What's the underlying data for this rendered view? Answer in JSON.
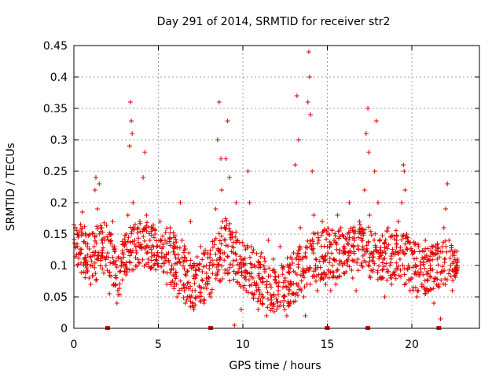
{
  "chart_data": {
    "type": "scatter",
    "title": "Day 291 of 2014, SRMTID for receiver str2",
    "xlabel": "GPS time / hours",
    "ylabel": "SRMTID / TECUs",
    "xlim": [
      0,
      24
    ],
    "ylim": [
      0,
      0.45
    ],
    "x_ticks": [
      0,
      5,
      10,
      15,
      20
    ],
    "x_tick_labels": [
      "0",
      "5",
      "10",
      "15",
      "20"
    ],
    "y_ticks": [
      0,
      0.05,
      0.1,
      0.15,
      0.2,
      0.25,
      0.3,
      0.35,
      0.4,
      0.45
    ],
    "y_tick_labels": [
      "0",
      "0.05",
      "0.1",
      "0.15",
      "0.2",
      "0.25",
      "0.3",
      "0.35",
      "0.4",
      "0.45"
    ],
    "grid": true,
    "marker": "+",
    "series_color": "#e00000",
    "series": [
      {
        "name": "SRMTID",
        "points": [
          [
            0.0,
            0.165
          ],
          [
            0.1,
            0.13
          ],
          [
            0.2,
            0.1
          ],
          [
            0.25,
            0.145
          ],
          [
            0.35,
            0.12
          ],
          [
            0.4,
            0.165
          ],
          [
            0.5,
            0.185
          ],
          [
            0.6,
            0.11
          ],
          [
            0.7,
            0.15
          ],
          [
            0.8,
            0.13
          ],
          [
            0.9,
            0.08
          ],
          [
            1.0,
            0.07
          ],
          [
            1.1,
            0.1
          ],
          [
            1.2,
            0.13
          ],
          [
            1.25,
            0.22
          ],
          [
            1.3,
            0.24
          ],
          [
            1.4,
            0.19
          ],
          [
            1.5,
            0.23
          ],
          [
            1.6,
            0.16
          ],
          [
            1.7,
            0.12
          ],
          [
            1.8,
            0.14
          ],
          [
            1.9,
            0.1
          ],
          [
            2.0,
            0.12
          ],
          [
            2.1,
            0.055
          ],
          [
            2.2,
            0.15
          ],
          [
            2.3,
            0.17
          ],
          [
            2.4,
            0.13
          ],
          [
            2.5,
            0.08
          ],
          [
            2.55,
            0.04
          ],
          [
            2.6,
            0.06
          ],
          [
            2.7,
            0.09
          ],
          [
            2.8,
            0.1
          ],
          [
            2.9,
            0.12
          ],
          [
            3.0,
            0.09
          ],
          [
            3.1,
            0.15
          ],
          [
            3.2,
            0.18
          ],
          [
            3.3,
            0.29
          ],
          [
            3.35,
            0.36
          ],
          [
            3.4,
            0.33
          ],
          [
            3.45,
            0.31
          ],
          [
            3.5,
            0.2
          ],
          [
            3.6,
            0.14
          ],
          [
            3.7,
            0.12
          ],
          [
            3.8,
            0.16
          ],
          [
            3.9,
            0.17
          ],
          [
            4.0,
            0.13
          ],
          [
            4.1,
            0.24
          ],
          [
            4.2,
            0.28
          ],
          [
            4.3,
            0.18
          ],
          [
            4.4,
            0.11
          ],
          [
            4.5,
            0.14
          ],
          [
            4.6,
            0.12
          ],
          [
            4.7,
            0.16
          ],
          [
            4.8,
            0.15
          ],
          [
            4.9,
            0.13
          ],
          [
            5.0,
            0.1
          ],
          [
            5.1,
            0.17
          ],
          [
            5.2,
            0.12
          ],
          [
            5.3,
            0.09
          ],
          [
            5.4,
            0.14
          ],
          [
            5.5,
            0.07
          ],
          [
            5.6,
            0.12
          ],
          [
            5.7,
            0.16
          ],
          [
            5.8,
            0.1
          ],
          [
            5.9,
            0.085
          ],
          [
            6.0,
            0.13
          ],
          [
            6.1,
            0.05
          ],
          [
            6.2,
            0.11
          ],
          [
            6.3,
            0.2
          ],
          [
            6.4,
            0.14
          ],
          [
            6.5,
            0.07
          ],
          [
            6.6,
            0.04
          ],
          [
            6.7,
            0.09
          ],
          [
            6.8,
            0.12
          ],
          [
            6.9,
            0.17
          ],
          [
            7.0,
            0.06
          ],
          [
            7.1,
            0.03
          ],
          [
            7.2,
            0.08
          ],
          [
            7.3,
            0.1
          ],
          [
            7.4,
            0.05
          ],
          [
            7.5,
            0.13
          ],
          [
            7.6,
            0.09
          ],
          [
            7.7,
            0.04
          ],
          [
            7.8,
            0.07
          ],
          [
            7.9,
            0.12
          ],
          [
            8.0,
            0.08
          ],
          [
            8.1,
            0.05
          ],
          [
            8.2,
            0.1
          ],
          [
            8.3,
            0.14
          ],
          [
            8.4,
            0.19
          ],
          [
            8.5,
            0.3
          ],
          [
            8.6,
            0.36
          ],
          [
            8.7,
            0.27
          ],
          [
            8.75,
            0.22
          ],
          [
            8.8,
            0.17
          ],
          [
            8.9,
            0.12
          ],
          [
            9.0,
            0.27
          ],
          [
            9.1,
            0.33
          ],
          [
            9.2,
            0.24
          ],
          [
            9.3,
            0.15
          ],
          [
            9.4,
            0.1
          ],
          [
            9.5,
            0.005
          ],
          [
            9.6,
            0.2
          ],
          [
            9.7,
            0.14
          ],
          [
            9.8,
            0.07
          ],
          [
            9.9,
            0.03
          ],
          [
            10.0,
            0.11
          ],
          [
            10.1,
            0.09
          ],
          [
            10.2,
            0.06
          ],
          [
            10.3,
            0.25
          ],
          [
            10.4,
            0.2
          ],
          [
            10.5,
            0.13
          ],
          [
            10.6,
            0.08
          ],
          [
            10.7,
            0.1
          ],
          [
            10.8,
            0.06
          ],
          [
            10.9,
            0.03
          ],
          [
            11.0,
            0.08
          ],
          [
            11.1,
            0.12
          ],
          [
            11.2,
            0.05
          ],
          [
            11.3,
            0.09
          ],
          [
            11.4,
            0.02
          ],
          [
            11.5,
            0.14
          ],
          [
            11.6,
            0.07
          ],
          [
            11.7,
            0.04
          ],
          [
            11.8,
            0.11
          ],
          [
            11.9,
            0.09
          ],
          [
            12.0,
            0.03
          ],
          [
            12.1,
            0.06
          ],
          [
            12.2,
            0.13
          ],
          [
            12.3,
            0.1
          ],
          [
            12.4,
            0.05
          ],
          [
            12.5,
            0.08
          ],
          [
            12.6,
            0.02
          ],
          [
            12.7,
            0.04
          ],
          [
            12.8,
            0.07
          ],
          [
            12.9,
            0.11
          ],
          [
            13.0,
            0.12
          ],
          [
            13.1,
            0.26
          ],
          [
            13.2,
            0.37
          ],
          [
            13.3,
            0.3
          ],
          [
            13.4,
            0.16
          ],
          [
            13.5,
            0.11
          ],
          [
            13.6,
            0.05
          ],
          [
            13.7,
            0.02
          ],
          [
            13.8,
            0.07
          ],
          [
            13.85,
            0.36
          ],
          [
            13.9,
            0.44
          ],
          [
            13.95,
            0.4
          ],
          [
            14.0,
            0.34
          ],
          [
            14.1,
            0.25
          ],
          [
            14.2,
            0.18
          ],
          [
            14.3,
            0.1
          ],
          [
            14.4,
            0.06
          ],
          [
            14.5,
            0.14
          ],
          [
            14.6,
            0.08
          ],
          [
            14.7,
            0.17
          ],
          [
            14.8,
            0.11
          ],
          [
            14.9,
            0.07
          ],
          [
            15.0,
            0.13
          ],
          [
            15.1,
            0.09
          ],
          [
            15.2,
            0.06
          ],
          [
            15.3,
            0.1
          ],
          [
            15.4,
            0.14
          ],
          [
            15.5,
            0.07
          ],
          [
            15.6,
            0.18
          ],
          [
            15.7,
            0.12
          ],
          [
            15.8,
            0.16
          ],
          [
            15.9,
            0.1
          ],
          [
            16.0,
            0.13
          ],
          [
            16.1,
            0.09
          ],
          [
            16.2,
            0.15
          ],
          [
            16.3,
            0.2
          ],
          [
            16.4,
            0.12
          ],
          [
            16.5,
            0.08
          ],
          [
            16.6,
            0.14
          ],
          [
            16.7,
            0.06
          ],
          [
            16.8,
            0.11
          ],
          [
            16.9,
            0.17
          ],
          [
            17.0,
            0.1
          ],
          [
            17.1,
            0.13
          ],
          [
            17.2,
            0.22
          ],
          [
            17.3,
            0.31
          ],
          [
            17.4,
            0.35
          ],
          [
            17.45,
            0.28
          ],
          [
            17.5,
            0.18
          ],
          [
            17.6,
            0.12
          ],
          [
            17.7,
            0.09
          ],
          [
            17.8,
            0.25
          ],
          [
            17.9,
            0.33
          ],
          [
            18.0,
            0.2
          ],
          [
            18.1,
            0.14
          ],
          [
            18.2,
            0.08
          ],
          [
            18.3,
            0.11
          ],
          [
            18.4,
            0.05
          ],
          [
            18.5,
            0.13
          ],
          [
            18.6,
            0.16
          ],
          [
            18.7,
            0.1
          ],
          [
            18.8,
            0.07
          ],
          [
            18.9,
            0.12
          ],
          [
            19.0,
            0.09
          ],
          [
            19.1,
            0.14
          ],
          [
            19.2,
            0.17
          ],
          [
            19.3,
            0.11
          ],
          [
            19.4,
            0.2
          ],
          [
            19.5,
            0.26
          ],
          [
            19.55,
            0.25
          ],
          [
            19.6,
            0.22
          ],
          [
            19.7,
            0.15
          ],
          [
            19.8,
            0.1
          ],
          [
            19.9,
            0.06
          ],
          [
            20.0,
            0.08
          ],
          [
            20.1,
            0.12
          ],
          [
            20.2,
            0.09
          ],
          [
            20.3,
            0.05
          ],
          [
            20.4,
            0.13
          ],
          [
            20.5,
            0.1
          ],
          [
            20.6,
            0.07
          ],
          [
            20.7,
            0.11
          ],
          [
            20.8,
            0.14
          ],
          [
            20.9,
            0.09
          ],
          [
            21.0,
            0.06
          ],
          [
            21.1,
            0.1
          ],
          [
            21.2,
            0.12
          ],
          [
            21.3,
            0.04
          ],
          [
            21.4,
            0.08
          ],
          [
            21.5,
            0.11
          ],
          [
            21.6,
            0.07
          ],
          [
            21.7,
            0.015
          ],
          [
            21.8,
            0.13
          ],
          [
            21.9,
            0.16
          ],
          [
            22.0,
            0.19
          ],
          [
            22.1,
            0.23
          ],
          [
            22.2,
            0.14
          ],
          [
            22.3,
            0.1
          ],
          [
            22.4,
            0.06
          ],
          [
            22.5,
            0.12
          ],
          [
            22.6,
            0.09
          ],
          [
            22.7,
            0.11
          ]
        ],
        "band": [
          [
            0.0,
            0.1,
            0.165
          ],
          [
            1.0,
            0.07,
            0.16
          ],
          [
            2.0,
            0.09,
            0.17
          ],
          [
            2.6,
            0.04,
            0.11
          ],
          [
            3.0,
            0.08,
            0.16
          ],
          [
            4.0,
            0.1,
            0.17
          ],
          [
            5.0,
            0.09,
            0.17
          ],
          [
            6.0,
            0.06,
            0.15
          ],
          [
            7.0,
            0.03,
            0.12
          ],
          [
            8.0,
            0.05,
            0.13
          ],
          [
            9.0,
            0.08,
            0.18
          ],
          [
            10.0,
            0.06,
            0.14
          ],
          [
            11.0,
            0.04,
            0.12
          ],
          [
            12.0,
            0.02,
            0.09
          ],
          [
            13.0,
            0.04,
            0.13
          ],
          [
            14.0,
            0.07,
            0.15
          ],
          [
            15.0,
            0.08,
            0.16
          ],
          [
            16.0,
            0.08,
            0.16
          ],
          [
            17.0,
            0.09,
            0.17
          ],
          [
            18.0,
            0.07,
            0.15
          ],
          [
            19.0,
            0.08,
            0.16
          ],
          [
            20.0,
            0.06,
            0.14
          ],
          [
            21.0,
            0.05,
            0.13
          ],
          [
            22.0,
            0.07,
            0.14
          ],
          [
            22.7,
            0.08,
            0.13
          ]
        ]
      }
    ],
    "zero_markers": [
      2.0,
      8.1,
      15.0,
      17.4,
      21.6
    ]
  }
}
